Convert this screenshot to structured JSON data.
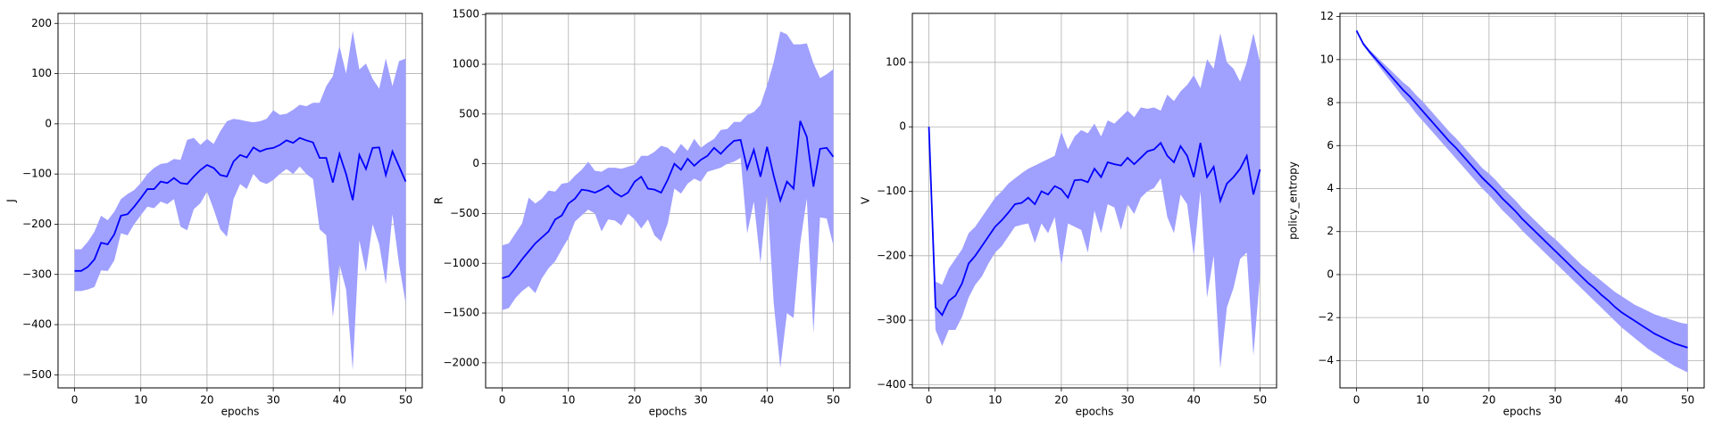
{
  "chart_data": [
    {
      "type": "line",
      "xlabel": "epochs",
      "ylabel": "J",
      "color": "#0000ff",
      "band_color": "#a0a0ff",
      "grid": true,
      "x": [
        0,
        1,
        2,
        3,
        4,
        5,
        6,
        7,
        8,
        9,
        10,
        11,
        12,
        13,
        14,
        15,
        16,
        17,
        18,
        19,
        20,
        21,
        22,
        23,
        24,
        25,
        26,
        27,
        28,
        29,
        30,
        31,
        32,
        33,
        34,
        35,
        36,
        37,
        38,
        39,
        40,
        41,
        42,
        43,
        44,
        45,
        46,
        47,
        48,
        49,
        50
      ],
      "values": [
        -293,
        -293,
        -285,
        -270,
        -237,
        -240,
        -220,
        -183,
        -180,
        -165,
        -148,
        -130,
        -130,
        -115,
        -118,
        -108,
        -118,
        -120,
        -105,
        -92,
        -82,
        -88,
        -102,
        -105,
        -75,
        -62,
        -67,
        -47,
        -55,
        -50,
        -48,
        -42,
        -33,
        -38,
        -28,
        -33,
        -37,
        -68,
        -68,
        -117,
        -60,
        -100,
        -152,
        -62,
        -90,
        -48,
        -47,
        -102,
        -55,
        -85,
        -115
      ],
      "upper": [
        -250,
        -250,
        -235,
        -215,
        -183,
        -192,
        -175,
        -150,
        -140,
        -132,
        -118,
        -100,
        -88,
        -80,
        -78,
        -70,
        -72,
        -32,
        -28,
        -42,
        -30,
        -40,
        -15,
        5,
        10,
        8,
        5,
        3,
        5,
        10,
        27,
        18,
        20,
        28,
        38,
        35,
        42,
        42,
        75,
        95,
        155,
        100,
        185,
        108,
        120,
        90,
        70,
        130,
        75,
        125,
        130
      ],
      "lower": [
        -333,
        -333,
        -330,
        -325,
        -292,
        -293,
        -272,
        -218,
        -222,
        -200,
        -182,
        -165,
        -168,
        -155,
        -160,
        -150,
        -205,
        -212,
        -170,
        -158,
        -135,
        -170,
        -210,
        -225,
        -150,
        -120,
        -130,
        -100,
        -115,
        -120,
        -112,
        -100,
        -90,
        -100,
        -85,
        -100,
        -110,
        -210,
        -222,
        -385,
        -280,
        -330,
        -490,
        -232,
        -295,
        -200,
        -240,
        -320,
        -180,
        -280,
        -358
      ],
      "xlim": [
        -2.5,
        52.5
      ],
      "xticks": [
        0,
        10,
        20,
        30,
        40,
        50
      ],
      "ylim": [
        -526,
        220
      ],
      "yticks": [
        {
          "value": -500,
          "label": "−500"
        },
        {
          "value": -400,
          "label": "−400"
        },
        {
          "value": -300,
          "label": "−300"
        },
        {
          "value": -200,
          "label": "−200"
        },
        {
          "value": -100,
          "label": "−100"
        },
        0,
        100,
        200
      ]
    },
    {
      "type": "line",
      "xlabel": "epochs",
      "ylabel": "R",
      "color": "#0000ff",
      "band_color": "#a0a0ff",
      "grid": true,
      "x": [
        0,
        1,
        2,
        3,
        4,
        5,
        6,
        7,
        8,
        9,
        10,
        11,
        12,
        13,
        14,
        15,
        16,
        17,
        18,
        19,
        20,
        21,
        22,
        23,
        24,
        25,
        26,
        27,
        28,
        29,
        30,
        31,
        32,
        33,
        34,
        35,
        36,
        37,
        38,
        39,
        40,
        41,
        42,
        43,
        44,
        45,
        46,
        47,
        48,
        49,
        50
      ],
      "values": [
        -1150,
        -1130,
        -1050,
        -960,
        -880,
        -800,
        -740,
        -680,
        -560,
        -520,
        -400,
        -350,
        -260,
        -270,
        -290,
        -260,
        -220,
        -290,
        -330,
        -290,
        -180,
        -130,
        -250,
        -260,
        -290,
        -160,
        0,
        -60,
        50,
        -20,
        40,
        80,
        160,
        100,
        170,
        230,
        240,
        -50,
        140,
        -130,
        170,
        -120,
        -370,
        -180,
        -250,
        430,
        270,
        -230,
        150,
        160,
        70
      ],
      "upper": [
        -820,
        -800,
        -700,
        -600,
        -340,
        -400,
        -350,
        -270,
        -280,
        -200,
        -190,
        -120,
        -60,
        20,
        -70,
        -80,
        -40,
        -40,
        -50,
        -30,
        -10,
        80,
        80,
        120,
        180,
        160,
        100,
        200,
        130,
        250,
        160,
        210,
        250,
        340,
        350,
        420,
        420,
        490,
        520,
        590,
        790,
        1020,
        1330,
        1300,
        1200,
        1200,
        1210,
        1010,
        860,
        900,
        950
      ],
      "lower": [
        -1470,
        -1450,
        -1350,
        -1280,
        -1230,
        -1300,
        -1150,
        -1050,
        -980,
        -860,
        -750,
        -580,
        -520,
        -460,
        -500,
        -680,
        -560,
        -570,
        -620,
        -500,
        -560,
        -650,
        -560,
        -720,
        -780,
        -600,
        -250,
        -300,
        -200,
        -150,
        -180,
        -80,
        -60,
        -40,
        0,
        20,
        60,
        -700,
        -380,
        -1000,
        -300,
        -1400,
        -2050,
        -1500,
        -1550,
        -800,
        -350,
        -1700,
        -540,
        -550,
        -820
      ],
      "xlim": [
        -2.5,
        52.5
      ],
      "xticks": [
        0,
        10,
        20,
        30,
        40,
        50
      ],
      "ylim": [
        -2252,
        1511
      ],
      "yticks": [
        {
          "value": -2000,
          "label": "−2000"
        },
        {
          "value": -1500,
          "label": "−1500"
        },
        {
          "value": -1000,
          "label": "−1000"
        },
        {
          "value": -500,
          "label": "−500"
        },
        0,
        500,
        1000,
        1500
      ]
    },
    {
      "type": "line",
      "xlabel": "epochs",
      "ylabel": "V",
      "color": "#0000ff",
      "band_color": "#a0a0ff",
      "grid": true,
      "x": [
        0,
        1,
        2,
        3,
        4,
        5,
        6,
        7,
        8,
        9,
        10,
        11,
        12,
        13,
        14,
        15,
        16,
        17,
        18,
        19,
        20,
        21,
        22,
        23,
        24,
        25,
        26,
        27,
        28,
        29,
        30,
        31,
        32,
        33,
        34,
        35,
        36,
        37,
        38,
        39,
        40,
        41,
        42,
        43,
        44,
        45,
        46,
        47,
        48,
        49,
        50
      ],
      "values": [
        0,
        -280,
        -292,
        -270,
        -262,
        -243,
        -212,
        -200,
        -185,
        -170,
        -155,
        -145,
        -133,
        -120,
        -118,
        -110,
        -120,
        -100,
        -105,
        -92,
        -97,
        -110,
        -83,
        -82,
        -86,
        -65,
        -78,
        -55,
        -58,
        -60,
        -48,
        -58,
        -48,
        -38,
        -35,
        -25,
        -45,
        -55,
        -30,
        -45,
        -78,
        -25,
        -78,
        -62,
        -115,
        -88,
        -78,
        -65,
        -45,
        -105,
        -66
      ],
      "upper": [
        0,
        -240,
        -245,
        -220,
        -205,
        -190,
        -165,
        -155,
        -140,
        -125,
        -110,
        -100,
        -88,
        -80,
        -72,
        -65,
        -60,
        -55,
        -50,
        -45,
        -8,
        -35,
        -15,
        -5,
        -10,
        5,
        -15,
        10,
        5,
        15,
        25,
        15,
        30,
        28,
        30,
        25,
        50,
        40,
        55,
        65,
        80,
        60,
        105,
        90,
        145,
        100,
        90,
        70,
        100,
        145,
        100
      ],
      "lower": [
        0,
        -315,
        -340,
        -315,
        -315,
        -295,
        -265,
        -245,
        -232,
        -212,
        -195,
        -185,
        -170,
        -155,
        -152,
        -150,
        -180,
        -150,
        -165,
        -140,
        -215,
        -150,
        -155,
        -160,
        -195,
        -130,
        -165,
        -120,
        -125,
        -160,
        -120,
        -135,
        -110,
        -100,
        -95,
        -80,
        -140,
        -165,
        -105,
        -120,
        -200,
        -100,
        -265,
        -200,
        -375,
        -280,
        -250,
        -205,
        -195,
        -355,
        -230
      ],
      "xlim": [
        -2.5,
        52.5
      ],
      "xticks": [
        0,
        10,
        20,
        30,
        40,
        50
      ],
      "ylim": [
        -405,
        176
      ],
      "yticks": [
        {
          "value": -400,
          "label": "−400"
        },
        {
          "value": -300,
          "label": "−300"
        },
        {
          "value": -200,
          "label": "−200"
        },
        {
          "value": -100,
          "label": "−100"
        },
        0,
        100
      ]
    },
    {
      "type": "line",
      "xlabel": "epochs",
      "ylabel": "policy_entropy",
      "color": "#0000ff",
      "band_color": "#a0a0ff",
      "grid": true,
      "x": [
        0,
        1,
        2,
        3,
        4,
        5,
        6,
        7,
        8,
        9,
        10,
        11,
        12,
        13,
        14,
        15,
        16,
        17,
        18,
        19,
        20,
        21,
        22,
        23,
        24,
        25,
        26,
        27,
        28,
        29,
        30,
        31,
        32,
        33,
        34,
        35,
        36,
        37,
        38,
        39,
        40,
        41,
        42,
        43,
        44,
        45,
        46,
        47,
        48,
        49,
        50
      ],
      "values": [
        11.35,
        10.75,
        10.35,
        10.0,
        9.65,
        9.3,
        8.95,
        8.6,
        8.3,
        7.95,
        7.6,
        7.25,
        6.9,
        6.55,
        6.2,
        5.9,
        5.55,
        5.2,
        4.85,
        4.5,
        4.2,
        3.9,
        3.55,
        3.25,
        2.95,
        2.6,
        2.3,
        2.0,
        1.7,
        1.4,
        1.1,
        0.8,
        0.5,
        0.2,
        -0.1,
        -0.4,
        -0.65,
        -0.95,
        -1.2,
        -1.5,
        -1.75,
        -1.95,
        -2.15,
        -2.35,
        -2.55,
        -2.75,
        -2.9,
        -3.05,
        -3.2,
        -3.3,
        -3.4
      ],
      "upper": [
        11.4,
        10.8,
        10.45,
        10.15,
        9.85,
        9.55,
        9.25,
        8.95,
        8.7,
        8.35,
        8.05,
        7.7,
        7.35,
        7.0,
        6.65,
        6.35,
        6.0,
        5.65,
        5.3,
        4.95,
        4.7,
        4.4,
        4.05,
        3.75,
        3.45,
        3.1,
        2.8,
        2.5,
        2.2,
        1.9,
        1.65,
        1.35,
        1.05,
        0.75,
        0.45,
        0.2,
        -0.05,
        -0.3,
        -0.55,
        -0.8,
        -1.0,
        -1.2,
        -1.4,
        -1.55,
        -1.7,
        -1.85,
        -1.95,
        -2.05,
        -2.15,
        -2.25,
        -2.3
      ],
      "lower": [
        11.3,
        10.65,
        10.25,
        9.85,
        9.45,
        9.05,
        8.65,
        8.25,
        7.9,
        7.5,
        7.15,
        6.8,
        6.45,
        6.1,
        5.75,
        5.4,
        5.05,
        4.7,
        4.35,
        4.0,
        3.7,
        3.35,
        3.0,
        2.7,
        2.4,
        2.05,
        1.75,
        1.45,
        1.15,
        0.85,
        0.55,
        0.25,
        -0.05,
        -0.35,
        -0.65,
        -0.95,
        -1.25,
        -1.55,
        -1.85,
        -2.15,
        -2.45,
        -2.7,
        -2.95,
        -3.2,
        -3.45,
        -3.65,
        -3.85,
        -4.05,
        -4.25,
        -4.4,
        -4.55
      ],
      "xlim": [
        -2.5,
        52.5
      ],
      "xticks": [
        0,
        10,
        20,
        30,
        40,
        50
      ],
      "ylim": [
        -5.27,
        12.15
      ],
      "yticks": [
        {
          "value": -4,
          "label": "−4"
        },
        {
          "value": -2,
          "label": "−2"
        },
        0,
        2,
        4,
        6,
        8,
        10,
        12
      ]
    }
  ]
}
